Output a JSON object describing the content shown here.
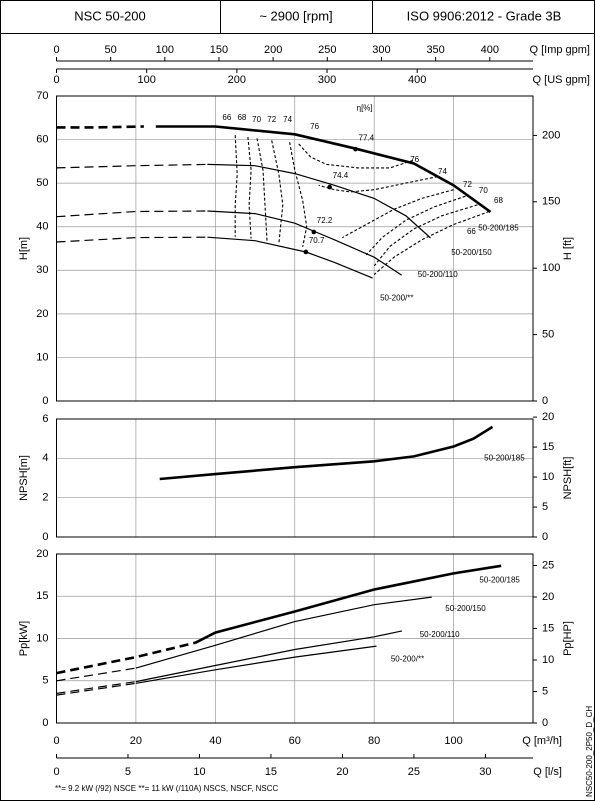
{
  "header": {
    "model": "NSC 50-200",
    "speed": "~ 2900 [rpm]",
    "standard": "ISO 9906:2012 - Grade 3B"
  },
  "flow_axes": [
    {
      "label": "Q [Imp gpm]",
      "xlim": [
        0,
        439.9
      ],
      "xticks": [
        0,
        50,
        100,
        150,
        200,
        250,
        300,
        350,
        400
      ]
    },
    {
      "label": "Q [US gpm]",
      "xlim": [
        0,
        528.4
      ],
      "xticks": [
        0,
        100,
        200,
        300,
        400
      ]
    },
    {
      "label": "Q [l/s]",
      "xlim": [
        0,
        33.33
      ],
      "xticks": [
        0,
        5,
        10,
        15,
        20,
        25,
        30
      ]
    }
  ],
  "chart_data": [
    {
      "type": "line",
      "ylabel": "H[m]",
      "y2label": "H [ft]",
      "xlim": [
        0,
        120
      ],
      "xticks": [
        0,
        20,
        40,
        60,
        80,
        100
      ],
      "ylim": [
        0,
        70
      ],
      "yticks": [
        0,
        10,
        20,
        30,
        40,
        50,
        60,
        70
      ],
      "y2lim": [
        0,
        229.66
      ],
      "y2ticks": [
        0,
        50,
        100,
        150,
        200
      ],
      "grid": true,
      "series": [
        {
          "color": "#000000",
          "line": "dashed",
          "weight": "bold",
          "x": [
            0,
            10,
            22
          ],
          "values": [
            62.8,
            62.8,
            63
          ]
        },
        {
          "color": "#000000",
          "line": "solid",
          "weight": "bold",
          "x": [
            25,
            40,
            60,
            75,
            90,
            100,
            109.3
          ],
          "values": [
            63,
            63,
            61.2,
            58,
            54.5,
            49.5,
            43.4
          ]
        },
        {
          "color": "#000000",
          "line": "dashed",
          "weight": "normal",
          "x": [
            0,
            20,
            38
          ],
          "values": [
            53.5,
            54,
            54.3
          ]
        },
        {
          "color": "#000000",
          "line": "solid",
          "weight": "normal",
          "x": [
            38,
            50,
            60,
            70,
            80,
            88,
            94.2
          ],
          "values": [
            54.3,
            54,
            52.2,
            49.5,
            46.5,
            42.5,
            37.4
          ]
        },
        {
          "color": "#000000",
          "line": "dashed",
          "weight": "normal",
          "x": [
            0,
            20,
            38
          ],
          "values": [
            42.3,
            43.5,
            43.6
          ]
        },
        {
          "color": "#000000",
          "line": "solid",
          "weight": "normal",
          "x": [
            38,
            50,
            60,
            65,
            70,
            80,
            86.9
          ],
          "values": [
            43.6,
            43,
            40.8,
            38.9,
            37,
            33,
            28.9
          ]
        },
        {
          "color": "#000000",
          "line": "dashed",
          "weight": "normal",
          "x": [
            0,
            20,
            38
          ],
          "values": [
            36.5,
            37.5,
            37.6
          ]
        },
        {
          "color": "#000000",
          "line": "solid",
          "weight": "normal",
          "x": [
            38,
            50,
            62.8,
            70,
            79.6
          ],
          "values": [
            37.6,
            36.8,
            34.2,
            31.8,
            28.2
          ]
        },
        {
          "color": "#000000",
          "line": "dotted",
          "weight": "normal",
          "x": [
            45,
            45.5,
            45,
            45
          ],
          "values": [
            61,
            52,
            45,
            37.7
          ]
        },
        {
          "color": "#000000",
          "line": "dotted",
          "weight": "normal",
          "x": [
            109,
            100,
            92,
            85,
            80
          ],
          "values": [
            43.5,
            40.5,
            37,
            33,
            29
          ]
        },
        {
          "color": "#000000",
          "line": "dotted",
          "weight": "normal",
          "x": [
            48.2,
            49,
            48.5,
            49
          ],
          "values": [
            60.6,
            53,
            45,
            37.3
          ]
        },
        {
          "color": "#000000",
          "line": "dotted",
          "weight": "normal",
          "x": [
            106,
            97,
            90,
            84,
            80
          ],
          "values": [
            45,
            42.5,
            39.5,
            35.5,
            31
          ]
        },
        {
          "color": "#000000",
          "line": "dotted",
          "weight": "normal",
          "x": [
            50.5,
            52,
            52.5,
            53
          ],
          "values": [
            60.3,
            53,
            45,
            36.8
          ]
        },
        {
          "color": "#000000",
          "line": "dotted",
          "weight": "normal",
          "x": [
            103,
            95,
            88,
            82,
            78
          ],
          "values": [
            47,
            44.5,
            41.5,
            37.5,
            33.5
          ]
        },
        {
          "color": "#000000",
          "line": "dotted",
          "weight": "normal",
          "x": [
            54.2,
            56,
            57,
            56
          ],
          "values": [
            59.8,
            52,
            45,
            36.2
          ]
        },
        {
          "color": "#000000",
          "line": "dotted",
          "weight": "normal",
          "x": [
            100,
            92,
            85,
            78,
            72
          ],
          "values": [
            48.5,
            46.5,
            44,
            40.5,
            37.5
          ]
        },
        {
          "color": "#000000",
          "line": "dotted",
          "weight": "normal",
          "x": [
            58.7,
            60,
            62,
            63,
            62
          ],
          "values": [
            59.4,
            53,
            46,
            40,
            35.4
          ]
        },
        {
          "color": "#000000",
          "line": "dotted",
          "weight": "normal",
          "x": [
            96,
            88,
            80,
            74,
            70,
            66
          ],
          "values": [
            51.5,
            50,
            48.5,
            48,
            48.5,
            49.5
          ]
        },
        {
          "color": "#000000",
          "line": "dotted",
          "weight": "normal",
          "x": [
            61,
            64,
            68,
            76,
            84,
            90
          ],
          "values": [
            59,
            56,
            54.3,
            53.5,
            53.5,
            55.3
          ]
        }
      ],
      "points": [
        {
          "x": 75.3,
          "y": 57.8,
          "label": "77.4"
        },
        {
          "x": 68.8,
          "y": 49.1,
          "label": "74.4"
        },
        {
          "x": 64.8,
          "y": 38.8,
          "label": "72.2"
        },
        {
          "x": 62.8,
          "y": 34.2,
          "label": "70.7"
        }
      ],
      "annotations": [
        {
          "text": "η[%]",
          "x": 77.6,
          "y": 67.2
        },
        {
          "text": "66",
          "x": 42.9,
          "y": 65
        },
        {
          "text": "68",
          "x": 46.7,
          "y": 65
        },
        {
          "text": "70",
          "x": 50.4,
          "y": 64.5
        },
        {
          "text": "72",
          "x": 54.2,
          "y": 64.5
        },
        {
          "text": "74",
          "x": 58.2,
          "y": 64.5
        },
        {
          "text": "76",
          "x": 65,
          "y": 62.9
        },
        {
          "text": "76",
          "x": 90.2,
          "y": 55.3
        },
        {
          "text": "74",
          "x": 97.2,
          "y": 52.6
        },
        {
          "text": "72",
          "x": 103.5,
          "y": 49.6
        },
        {
          "text": "70",
          "x": 107.5,
          "y": 48.2
        },
        {
          "text": "68",
          "x": 111.3,
          "y": 45.9
        },
        {
          "text": "66",
          "x": 104.5,
          "y": 38.8
        },
        {
          "text": "50-200/185",
          "x": 111.3,
          "y": 39.6
        },
        {
          "text": "50-200/150",
          "x": 104.5,
          "y": 34
        },
        {
          "text": "50-200/110",
          "x": 96,
          "y": 28.9
        },
        {
          "text": "50-200/**",
          "x": 85.7,
          "y": 23.6
        }
      ]
    },
    {
      "type": "line",
      "ylabel": "NPSH[m]",
      "y2label": "NPSH[ft]",
      "xlim": [
        0,
        120
      ],
      "xticks": [
        0,
        20,
        40,
        60,
        80,
        100
      ],
      "ylim": [
        0,
        6
      ],
      "yticks": [
        0,
        2,
        4,
        6
      ],
      "y2lim": [
        0,
        19.685
      ],
      "y2ticks": [
        0,
        5,
        10,
        15,
        20
      ],
      "grid": true,
      "series": [
        {
          "color": "#000000",
          "line": "solid",
          "weight": "bold",
          "x": [
            26,
            40,
            60,
            80,
            90,
            100,
            105,
            109.8
          ],
          "values": [
            2.95,
            3.2,
            3.55,
            3.85,
            4.1,
            4.6,
            5,
            5.6
          ]
        }
      ],
      "annotations": [
        {
          "text": "50-200/185",
          "x": 112.8,
          "y": 4
        }
      ]
    },
    {
      "type": "line",
      "ylabel": "Pp[kW]",
      "y2label": "Pp[HP]",
      "xlabel": "Q [m³/h]",
      "xlim": [
        0,
        120
      ],
      "xticks": [
        0,
        20,
        40,
        60,
        80,
        100
      ],
      "ylim": [
        0,
        20
      ],
      "yticks": [
        0,
        5,
        10,
        15,
        20
      ],
      "y2lim": [
        0,
        26.82
      ],
      "y2ticks": [
        0,
        5,
        10,
        15,
        20,
        25
      ],
      "grid": true,
      "series": [
        {
          "color": "#000000",
          "line": "dashed",
          "weight": "bold",
          "x": [
            0,
            20,
            35
          ],
          "values": [
            5.9,
            7.8,
            9.5
          ]
        },
        {
          "color": "#000000",
          "line": "solid",
          "weight": "bold",
          "x": [
            35,
            40,
            60,
            80,
            100,
            112
          ],
          "values": [
            9.5,
            10.7,
            13.2,
            15.8,
            17.7,
            18.6
          ]
        },
        {
          "color": "#000000",
          "line": "dashed",
          "weight": "normal",
          "x": [
            0,
            20
          ],
          "values": [
            5,
            6.5
          ]
        },
        {
          "color": "#000000",
          "line": "solid",
          "weight": "normal",
          "x": [
            20,
            40,
            60,
            80,
            94.5
          ],
          "values": [
            6.5,
            9.2,
            12,
            14,
            14.9
          ]
        },
        {
          "color": "#000000",
          "line": "dashed",
          "weight": "normal",
          "x": [
            0,
            20
          ],
          "values": [
            3.5,
            4.9
          ]
        },
        {
          "color": "#000000",
          "line": "solid",
          "weight": "normal",
          "x": [
            20,
            40,
            60,
            80,
            87
          ],
          "values": [
            4.9,
            6.8,
            8.7,
            10.2,
            10.9
          ]
        },
        {
          "color": "#000000",
          "line": "dashed",
          "weight": "normal",
          "x": [
            0,
            20
          ],
          "values": [
            3.3,
            4.7
          ]
        },
        {
          "color": "#000000",
          "line": "solid",
          "weight": "normal",
          "x": [
            20,
            40,
            60,
            80.6
          ],
          "values": [
            4.7,
            6.3,
            7.8,
            9.1
          ]
        }
      ],
      "annotations": [
        {
          "text": "50-200/185",
          "x": 111.6,
          "y": 16.9
        },
        {
          "text": "50-200/150",
          "x": 103,
          "y": 13.5
        },
        {
          "text": "50-200/110",
          "x": 96.5,
          "y": 10.4
        },
        {
          "text": "50-200/**",
          "x": 88.4,
          "y": 7.5
        }
      ]
    }
  ],
  "footnote": "**= 9.2 kW (/92) NSCE   **= 11 kW (/110A) NSCS, NSCF, NSCC",
  "document_code": "NSC50-200_2P50_D_CH"
}
